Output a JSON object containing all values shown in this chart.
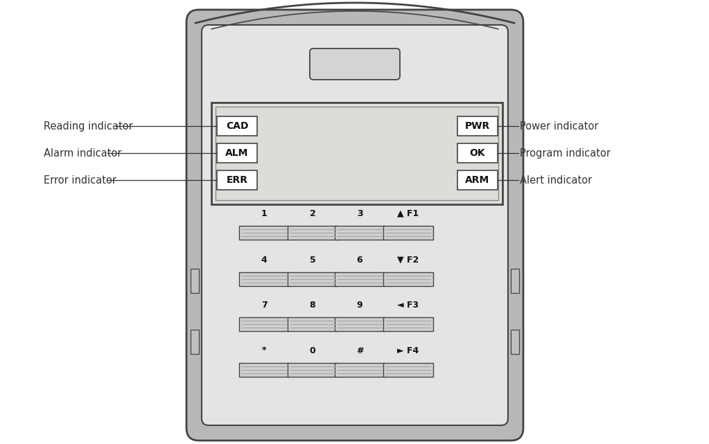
{
  "bg_color": "#ffffff",
  "outer_body_color": "#c8c8c8",
  "inner_body_color": "#e8e8e8",
  "panel_bg": "#f0f0ee",
  "border_color": "#444444",
  "line_color": "#666666",
  "text_color": "#111111",
  "label_color": "#333333",
  "btn_face": "#d0d0d0",
  "btn_stripe": "#a8a8a8",
  "left_labels": [
    {
      "text": "Reading indicator"
    },
    {
      "text": "Alarm indicator"
    },
    {
      "text": "Error indicator"
    }
  ],
  "right_labels": [
    {
      "text": "Power indicator"
    },
    {
      "text": "Program indicator"
    },
    {
      "text": "Alert indicator"
    }
  ],
  "indicator_left": [
    "CAD",
    "ALM",
    "ERR"
  ],
  "indicator_right": [
    "PWR",
    "OK",
    "ARM"
  ],
  "keypad_rows": [
    [
      "1",
      "2",
      "3",
      "▲ F1"
    ],
    [
      "4",
      "5",
      "6",
      "▼ F2"
    ],
    [
      "7",
      "8",
      "9",
      "◄ F3"
    ],
    [
      "*",
      "0",
      "#",
      "► F4"
    ]
  ],
  "font_size_label": 10.5,
  "font_size_ind_label": 9.5,
  "font_size_key_label": 9,
  "font_size_key_btn": 8
}
